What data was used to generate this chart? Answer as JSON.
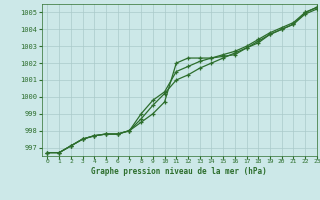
{
  "title": "Graphe pression niveau de la mer (hPa)",
  "background_color": "#cce8e8",
  "grid_color": "#aacaca",
  "line_color": "#2d6e2d",
  "xlim": [
    -0.5,
    23
  ],
  "ylim": [
    996.5,
    1005.5
  ],
  "yticks": [
    997,
    998,
    999,
    1000,
    1001,
    1002,
    1003,
    1004,
    1005
  ],
  "xticks": [
    0,
    1,
    2,
    3,
    4,
    5,
    6,
    7,
    8,
    9,
    10,
    11,
    12,
    13,
    14,
    15,
    16,
    17,
    18,
    19,
    20,
    21,
    22,
    23
  ],
  "series1": [
    996.7,
    996.7,
    997.1,
    997.5,
    997.7,
    997.8,
    997.8,
    998.0,
    998.5,
    999.0,
    999.7,
    1002.0,
    1002.3,
    1002.3,
    1002.3,
    1002.4,
    1002.5,
    1002.9,
    1003.2,
    1003.7,
    1004.0,
    1004.3,
    1005.0,
    1005.3
  ],
  "series2": [
    996.7,
    996.7,
    997.1,
    997.5,
    997.7,
    997.8,
    997.8,
    998.0,
    998.7,
    999.5,
    1000.2,
    1001.0,
    1001.3,
    1001.7,
    1002.0,
    1002.3,
    1002.6,
    1002.9,
    1003.3,
    1003.7,
    1004.0,
    1004.3,
    1004.9,
    1005.2
  ],
  "series3": [
    996.7,
    996.7,
    997.1,
    997.5,
    997.7,
    997.8,
    997.8,
    998.0,
    999.0,
    999.8,
    1000.3,
    1001.5,
    1001.8,
    1002.1,
    1002.3,
    1002.5,
    1002.7,
    1003.0,
    1003.4,
    1003.8,
    1004.1,
    1004.4,
    1005.0,
    1005.3
  ]
}
